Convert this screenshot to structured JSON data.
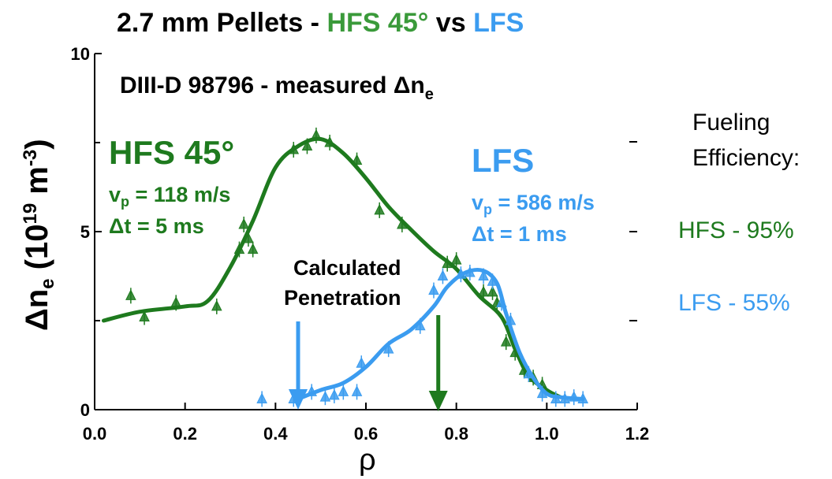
{
  "colors": {
    "hfs": "#1e7a1e",
    "lfs": "#3b9cf0",
    "hfs_title": "#3a9a3a",
    "lfs_title": "#3b9cf0",
    "black": "#000000"
  },
  "title": {
    "part1": "2.7 mm Pellets  -  ",
    "part2": "HFS 45°",
    "part3": " vs ",
    "part4": "LFS"
  },
  "inset_title": {
    "main": "DIII-D 98796 - measured Δn",
    "sub": "e"
  },
  "hfs_label": {
    "name": "HFS 45°",
    "vp_prefix": "v",
    "vp_sub": "p",
    "vp_rest": " = 118 m/s",
    "dt": "Δt = 5 ms"
  },
  "lfs_label": {
    "name": "LFS",
    "vp_prefix": "v",
    "vp_sub": "p",
    "vp_rest": " = 586 m/s",
    "dt": "Δt = 1 ms"
  },
  "penetration_label": {
    "line1": "Calculated",
    "line2": "Penetration"
  },
  "fueling": {
    "line1": "Fueling",
    "line2": "Efficiency:",
    "hfs": "HFS - 95%",
    "lfs": "LFS - 55%"
  },
  "chart_data": {
    "type": "line",
    "xlabel": "ρ",
    "ylabel": {
      "main": "Δn",
      "sub": "e",
      "rest": " (10",
      "sup": "19",
      "rest2": " m",
      "sup2": "-3",
      "rest3": ")"
    },
    "xlim": [
      0.0,
      1.2
    ],
    "ylim": [
      0,
      10
    ],
    "x_ticks": [
      "0.0",
      "0.2",
      "0.4",
      "0.6",
      "0.8",
      "1.0",
      "1.2"
    ],
    "y_ticks": [
      "0",
      "5",
      "10"
    ],
    "series": [
      {
        "name": "HFS 45°",
        "color_key": "hfs",
        "curve": [
          [
            0.02,
            2.5
          ],
          [
            0.1,
            2.75
          ],
          [
            0.2,
            2.9
          ],
          [
            0.25,
            3.05
          ],
          [
            0.3,
            4.0
          ],
          [
            0.35,
            5.3
          ],
          [
            0.4,
            6.8
          ],
          [
            0.45,
            7.4
          ],
          [
            0.5,
            7.6
          ],
          [
            0.55,
            7.2
          ],
          [
            0.6,
            6.5
          ],
          [
            0.65,
            5.7
          ],
          [
            0.7,
            5.05
          ],
          [
            0.75,
            4.45
          ],
          [
            0.8,
            3.95
          ],
          [
            0.85,
            3.2
          ],
          [
            0.9,
            2.6
          ],
          [
            0.93,
            1.7
          ],
          [
            0.96,
            0.95
          ],
          [
            1.0,
            0.55
          ],
          [
            1.03,
            0.35
          ]
        ],
        "points": [
          [
            0.08,
            3.2
          ],
          [
            0.11,
            2.6
          ],
          [
            0.18,
            3.0
          ],
          [
            0.27,
            2.9
          ],
          [
            0.32,
            4.5
          ],
          [
            0.33,
            5.2
          ],
          [
            0.34,
            4.8
          ],
          [
            0.35,
            4.5
          ],
          [
            0.44,
            7.3
          ],
          [
            0.47,
            7.4
          ],
          [
            0.49,
            7.7
          ],
          [
            0.52,
            7.5
          ],
          [
            0.58,
            7.0
          ],
          [
            0.63,
            5.6
          ],
          [
            0.68,
            5.2
          ],
          [
            0.78,
            4.1
          ],
          [
            0.8,
            4.2
          ],
          [
            0.86,
            3.3
          ],
          [
            0.88,
            3.3
          ],
          [
            0.89,
            3.0
          ],
          [
            0.91,
            1.9
          ],
          [
            0.93,
            1.6
          ],
          [
            0.95,
            1.1
          ],
          [
            0.97,
            0.9
          ],
          [
            0.99,
            0.7
          ]
        ]
      },
      {
        "name": "LFS",
        "color_key": "lfs",
        "curve": [
          [
            0.45,
            0.3
          ],
          [
            0.5,
            0.55
          ],
          [
            0.55,
            0.75
          ],
          [
            0.6,
            1.2
          ],
          [
            0.65,
            1.85
          ],
          [
            0.7,
            2.25
          ],
          [
            0.75,
            2.9
          ],
          [
            0.78,
            3.45
          ],
          [
            0.82,
            3.85
          ],
          [
            0.86,
            3.9
          ],
          [
            0.89,
            3.55
          ],
          [
            0.91,
            2.7
          ],
          [
            0.94,
            1.6
          ],
          [
            0.97,
            0.9
          ],
          [
            1.0,
            0.45
          ],
          [
            1.03,
            0.35
          ],
          [
            1.08,
            0.3
          ]
        ],
        "points": [
          [
            0.37,
            0.3
          ],
          [
            0.44,
            0.3
          ],
          [
            0.48,
            0.5
          ],
          [
            0.51,
            0.35
          ],
          [
            0.53,
            0.4
          ],
          [
            0.55,
            0.5
          ],
          [
            0.58,
            0.5
          ],
          [
            0.59,
            1.3
          ],
          [
            0.65,
            1.7
          ],
          [
            0.72,
            2.35
          ],
          [
            0.75,
            3.35
          ],
          [
            0.77,
            3.75
          ],
          [
            0.81,
            3.8
          ],
          [
            0.83,
            3.85
          ],
          [
            0.86,
            3.75
          ],
          [
            0.88,
            3.6
          ],
          [
            0.9,
            3.0
          ],
          [
            0.92,
            2.5
          ],
          [
            0.96,
            1.0
          ],
          [
            0.99,
            0.45
          ],
          [
            1.02,
            0.3
          ],
          [
            1.04,
            0.3
          ],
          [
            1.06,
            0.35
          ],
          [
            1.08,
            0.3
          ]
        ]
      }
    ],
    "penetration_arrows": [
      {
        "x": 0.45,
        "color_key": "lfs"
      },
      {
        "x": 0.76,
        "color_key": "hfs"
      }
    ]
  }
}
